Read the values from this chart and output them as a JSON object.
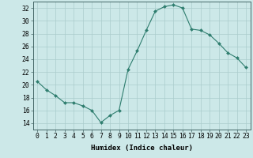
{
  "x": [
    0,
    1,
    2,
    3,
    4,
    5,
    6,
    7,
    8,
    9,
    10,
    11,
    12,
    13,
    14,
    15,
    16,
    17,
    18,
    19,
    20,
    21,
    22,
    23
  ],
  "y": [
    20.5,
    19.2,
    18.3,
    17.2,
    17.2,
    16.7,
    16.0,
    14.1,
    15.2,
    16.0,
    22.4,
    25.3,
    28.5,
    31.5,
    32.2,
    32.5,
    32.0,
    28.7,
    28.5,
    27.8,
    26.5,
    25.0,
    24.2,
    22.7
  ],
  "line_color": "#2e7d6e",
  "marker": "D",
  "marker_size": 2.0,
  "bg_color": "#cce8e8",
  "grid_color": "#aacccc",
  "xlabel": "Humidex (Indice chaleur)",
  "xlabel_fontsize": 6.5,
  "tick_fontsize": 5.8,
  "ylim": [
    13,
    33
  ],
  "xlim": [
    -0.5,
    23.5
  ],
  "yticks": [
    14,
    16,
    18,
    20,
    22,
    24,
    26,
    28,
    30,
    32
  ],
  "xticks": [
    0,
    1,
    2,
    3,
    4,
    5,
    6,
    7,
    8,
    9,
    10,
    11,
    12,
    13,
    14,
    15,
    16,
    17,
    18,
    19,
    20,
    21,
    22,
    23
  ]
}
